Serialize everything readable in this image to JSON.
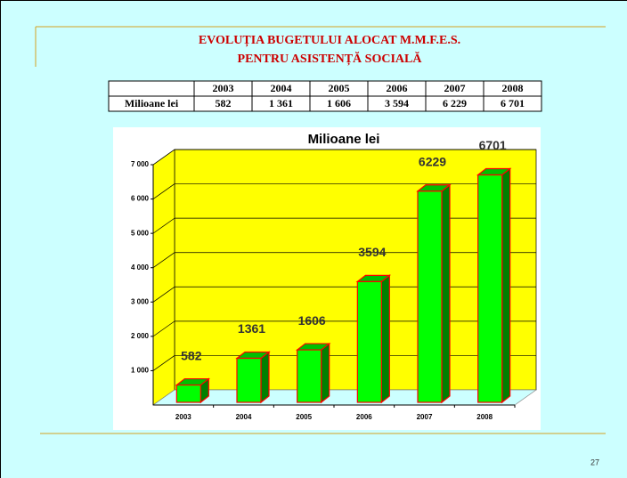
{
  "slide": {
    "title_lines": [
      "EVOLUȚIA BUGETULUI ALOCAT M.M.F.E.S.",
      "PENTRU ASISTENȚĂ SOCIALĂ"
    ],
    "page_number": "27"
  },
  "table": {
    "header": [
      "2003",
      "2004",
      "2005",
      "2006",
      "2007",
      "2008"
    ],
    "row_label": "Milioane lei",
    "row": [
      "582",
      "1 361",
      "1 606",
      "3 594",
      "6 229",
      "6 701"
    ]
  },
  "chart_data": {
    "type": "bar",
    "title": "Milioane lei",
    "categories": [
      "2003",
      "2004",
      "2005",
      "2006",
      "2007",
      "2008"
    ],
    "values": [
      582,
      1361,
      1606,
      3594,
      6229,
      6701
    ],
    "color": "#00ff00",
    "edge_color": "#ff0000",
    "wall_color": "#ffff00",
    "floor_color": "#ccffff",
    "ylim": [
      0,
      7000
    ],
    "yticks": [
      {
        "value": 1000,
        "label": "1 000"
      },
      {
        "value": 2000,
        "label": "2 000"
      },
      {
        "value": 3000,
        "label": "3 000"
      },
      {
        "value": 4000,
        "label": "4 000"
      },
      {
        "value": 5000,
        "label": "5 000"
      },
      {
        "value": 6000,
        "label": "6 000"
      },
      {
        "value": 7000,
        "label": "7 000"
      }
    ],
    "grid": true
  }
}
